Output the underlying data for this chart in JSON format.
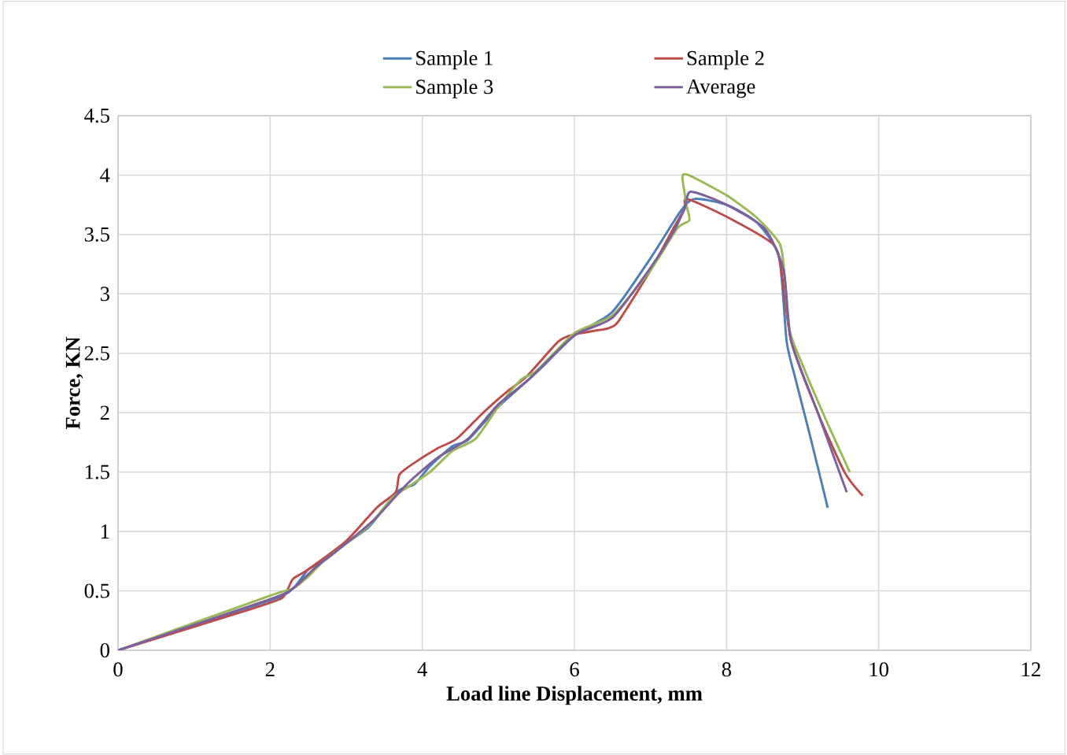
{
  "chart_data": {
    "type": "line",
    "xlabel": "Load line Displacement, mm",
    "ylabel": "Force, KN",
    "xlim": [
      0,
      12
    ],
    "ylim": [
      0,
      4.5
    ],
    "xticks": [
      0,
      2,
      4,
      6,
      8,
      10,
      12
    ],
    "yticks": [
      0,
      0.5,
      1,
      1.5,
      2,
      2.5,
      3,
      3.5,
      4,
      4.5
    ],
    "grid": true,
    "legend": "top",
    "marker": "none",
    "line_style": "solid",
    "series": [
      {
        "name": "Sample 1",
        "color": "#4a7ebb",
        "x": [
          0,
          2,
          2.3,
          2.5,
          2.7,
          3.0,
          3.3,
          3.5,
          3.7,
          3.9,
          4.1,
          4.4,
          4.6,
          5.0,
          5.4,
          5.6,
          6.0,
          6.5,
          7.0,
          7.4,
          7.58,
          8.0,
          8.4,
          8.69,
          8.79,
          8.9,
          9.1,
          9.33
        ],
        "values": [
          0,
          0.42,
          0.52,
          0.68,
          0.75,
          0.9,
          1.04,
          1.2,
          1.35,
          1.4,
          1.55,
          1.72,
          1.77,
          2.05,
          2.28,
          2.4,
          2.65,
          2.85,
          3.3,
          3.7,
          3.8,
          3.75,
          3.6,
          3.31,
          2.6,
          2.3,
          1.8,
          1.2
        ]
      },
      {
        "name": "Sample 2",
        "color": "#be4b48",
        "x": [
          0,
          2,
          2.2,
          2.3,
          2.5,
          3.0,
          3.4,
          3.65,
          3.7,
          3.9,
          4.2,
          4.45,
          4.8,
          5.1,
          5.38,
          5.79,
          6.0,
          6.44,
          6.59,
          7.0,
          7.3,
          7.45,
          7.48,
          8.0,
          8.61,
          8.72,
          8.85,
          9.2,
          9.55,
          9.79
        ],
        "values": [
          0,
          0.4,
          0.48,
          0.6,
          0.68,
          0.92,
          1.2,
          1.33,
          1.48,
          1.58,
          1.7,
          1.78,
          2.0,
          2.17,
          2.31,
          2.6,
          2.66,
          2.71,
          2.78,
          3.2,
          3.55,
          3.72,
          3.8,
          3.65,
          3.42,
          3.2,
          2.6,
          2.0,
          1.5,
          1.3
        ]
      },
      {
        "name": "Sample 3",
        "color": "#98b954",
        "x": [
          0,
          2,
          2.3,
          2.5,
          2.7,
          3.0,
          3.3,
          3.6,
          3.8,
          4.1,
          4.4,
          4.7,
          5.0,
          5.3,
          5.5,
          6.0,
          6.5,
          7.0,
          7.35,
          7.51,
          7.48,
          7.42,
          7.5,
          8.0,
          8.4,
          8.7,
          8.76,
          8.83,
          9.0,
          9.3,
          9.62
        ],
        "values": [
          0,
          0.46,
          0.52,
          0.62,
          0.75,
          0.9,
          1.05,
          1.28,
          1.37,
          1.5,
          1.68,
          1.78,
          2.05,
          2.28,
          2.35,
          2.67,
          2.82,
          3.2,
          3.55,
          3.62,
          3.73,
          3.98,
          4.0,
          3.83,
          3.64,
          3.42,
          3.17,
          2.69,
          2.4,
          1.95,
          1.5
        ]
      },
      {
        "name": "Average",
        "color": "#7d5fa0",
        "x": [
          0,
          2,
          2.3,
          2.6,
          3,
          3.4,
          3.8,
          4.2,
          4.6,
          5,
          5.4,
          6,
          6.5,
          7.0,
          7.3,
          7.45,
          7.53,
          8.0,
          8.5,
          8.75,
          8.85,
          9.2,
          9.58
        ],
        "values": [
          0,
          0.43,
          0.52,
          0.7,
          0.9,
          1.12,
          1.4,
          1.62,
          1.78,
          2.07,
          2.28,
          2.65,
          2.8,
          3.22,
          3.52,
          3.72,
          3.86,
          3.75,
          3.55,
          3.2,
          2.6,
          2.0,
          1.33
        ]
      }
    ]
  }
}
